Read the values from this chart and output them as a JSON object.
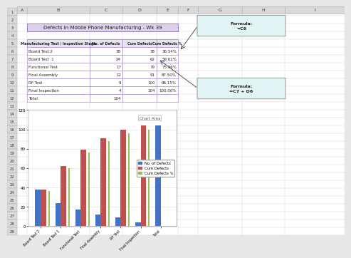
{
  "title": "Defects in Mobile Phone Manufacturing - Wk 39",
  "headers": [
    "Manufacturing Test / Inspection Stage",
    "No. of Defects",
    "Cum Defects",
    "Cum Defects %"
  ],
  "rows": [
    [
      "Board Test 2",
      "38",
      "38",
      "36.54%"
    ],
    [
      "Board Test  1",
      "24",
      "62",
      "59.62%"
    ],
    [
      "Functional Test",
      "17",
      "79",
      "75.96%"
    ],
    [
      "Final Assembly",
      "12",
      "91",
      "87.50%"
    ],
    [
      "RF Test",
      "9",
      "100",
      "96.15%"
    ],
    [
      "Final Inspection",
      "4",
      "104",
      "100.00%"
    ],
    [
      "Total",
      "104",
      "",
      ""
    ]
  ],
  "categories": [
    "Board Test 2",
    "Board Test 1",
    "Functional Test",
    "Final Assembly",
    "RF Test",
    "Final Inspection",
    "Total"
  ],
  "no_of_defects": [
    38,
    24,
    17,
    12,
    9,
    4,
    104
  ],
  "cum_defects": [
    38,
    62,
    79,
    91,
    100,
    104,
    0
  ],
  "cum_defects_pct": [
    0.3654,
    0.5962,
    0.7596,
    0.875,
    0.9615,
    1.0,
    0
  ],
  "bar_colors": {
    "no_defects": "#4472C4",
    "cum_defects": "#C0504D",
    "cum_pct": "#9BBB59"
  },
  "legend_labels": [
    "No. of Defects",
    "Cum Defects",
    "Cum Defects %"
  ],
  "chart_ylim": [
    0,
    120
  ],
  "chart_yticks": [
    0,
    20,
    40,
    60,
    80,
    100,
    120
  ],
  "title_bg": "#DDD0E8",
  "header_bg": "#EAE4F0",
  "col_header_bg": "#D9D9D9",
  "row_num_bg": "#D9D9D9",
  "cell_border": "#9B7EC8",
  "grid_color": "#D0D0D0",
  "chart_outer_bg": "#F5F5F5",
  "formula_box_bg": "#E0F4F4",
  "formula_box_border": "#888888",
  "col_labels": [
    "A",
    "B",
    "C",
    "D",
    "E",
    "F",
    "G",
    "H",
    "I"
  ],
  "num_rows": 29,
  "fig_bg": "#E8E8E8"
}
